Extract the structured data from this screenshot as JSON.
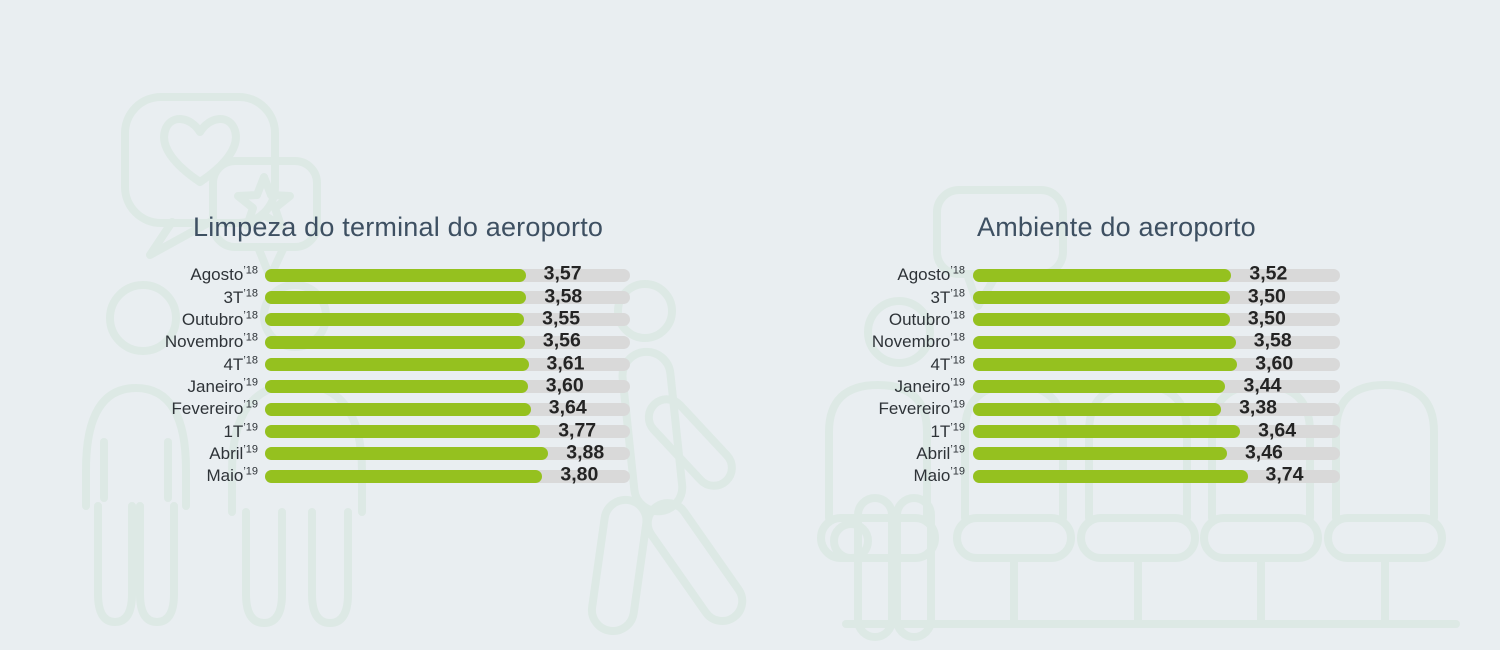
{
  "style": {
    "background": "#e9eef1",
    "bar_fill": "#95c11f",
    "bar_track": "#d9d9d9",
    "title_color": "#3e5062",
    "label_color": "#2e3338",
    "value_color": "#242424",
    "decoration_stroke": "#dde9e5"
  },
  "chart_data": [
    {
      "type": "bar",
      "orientation": "horizontal",
      "title": "Limpeza do terminal do aeroporto",
      "xlim": [
        0,
        5
      ],
      "grid": false,
      "legend": false,
      "categories": [
        "Agosto ’18",
        "3T ’18",
        "Outubro ’18",
        "Novembro ’18",
        "4T ’18",
        "Janeiro ’19",
        "Fevereiro ’19",
        "1T ’19",
        "Abril ’19",
        "Maio ’19"
      ],
      "values": [
        3.57,
        3.58,
        3.55,
        3.56,
        3.61,
        3.6,
        3.64,
        3.77,
        3.88,
        3.8
      ],
      "rows": [
        {
          "label": "Agosto",
          "year": "’18",
          "display": "3,57",
          "value": 3.57
        },
        {
          "label": "3T",
          "year": "’18",
          "display": "3,58",
          "value": 3.58
        },
        {
          "label": "Outubro",
          "year": "’18",
          "display": "3,55",
          "value": 3.55
        },
        {
          "label": "Novembro",
          "year": "’18",
          "display": "3,56",
          "value": 3.56
        },
        {
          "label": "4T",
          "year": "’18",
          "display": "3,61",
          "value": 3.61
        },
        {
          "label": "Janeiro",
          "year": "’19",
          "display": "3,60",
          "value": 3.6
        },
        {
          "label": "Fevereiro",
          "year": "’19",
          "display": "3,64",
          "value": 3.64
        },
        {
          "label": "1T",
          "year": "’19",
          "display": "3,77",
          "value": 3.77
        },
        {
          "label": "Abril",
          "year": "’19",
          "display": "3,88",
          "value": 3.88
        },
        {
          "label": "Maio",
          "year": "’19",
          "display": "3,80",
          "value": 3.8
        }
      ]
    },
    {
      "type": "bar",
      "orientation": "horizontal",
      "title": "Ambiente do aeroporto",
      "xlim": [
        0,
        5
      ],
      "grid": false,
      "legend": false,
      "categories": [
        "Agosto ’18",
        "3T ’18",
        "Outubro ’18",
        "Novembro ’18",
        "4T ’18",
        "Janeiro ’19",
        "Fevereiro ’19",
        "1T ’19",
        "Abril ’19",
        "Maio ’19"
      ],
      "values": [
        3.52,
        3.5,
        3.5,
        3.58,
        3.6,
        3.44,
        3.38,
        3.64,
        3.46,
        3.74
      ],
      "rows": [
        {
          "label": "Agosto",
          "year": "’18",
          "display": "3,52",
          "value": 3.52
        },
        {
          "label": "3T",
          "year": "’18",
          "display": "3,50",
          "value": 3.5
        },
        {
          "label": "Outubro",
          "year": "’18",
          "display": "3,50",
          "value": 3.5
        },
        {
          "label": "Novembro",
          "year": "’18",
          "display": "3,58",
          "value": 3.58
        },
        {
          "label": "4T",
          "year": "’18",
          "display": "3,60",
          "value": 3.6
        },
        {
          "label": "Janeiro",
          "year": "’19",
          "display": "3,44",
          "value": 3.44
        },
        {
          "label": "Fevereiro",
          "year": "’19",
          "display": "3,38",
          "value": 3.38
        },
        {
          "label": "1T",
          "year": "’19",
          "display": "3,64",
          "value": 3.64
        },
        {
          "label": "Abril",
          "year": "’19",
          "display": "3,46",
          "value": 3.46
        },
        {
          "label": "Maio",
          "year": "’19",
          "display": "3,74",
          "value": 3.74
        }
      ]
    }
  ],
  "decorations": {
    "icons": [
      "speech-bubble-heart-icon",
      "speech-bubble-star-icon",
      "standing-person-icon",
      "walking-person-icon",
      "speech-bubble-icon",
      "seated-person-icon",
      "airport-seats-icon"
    ]
  }
}
